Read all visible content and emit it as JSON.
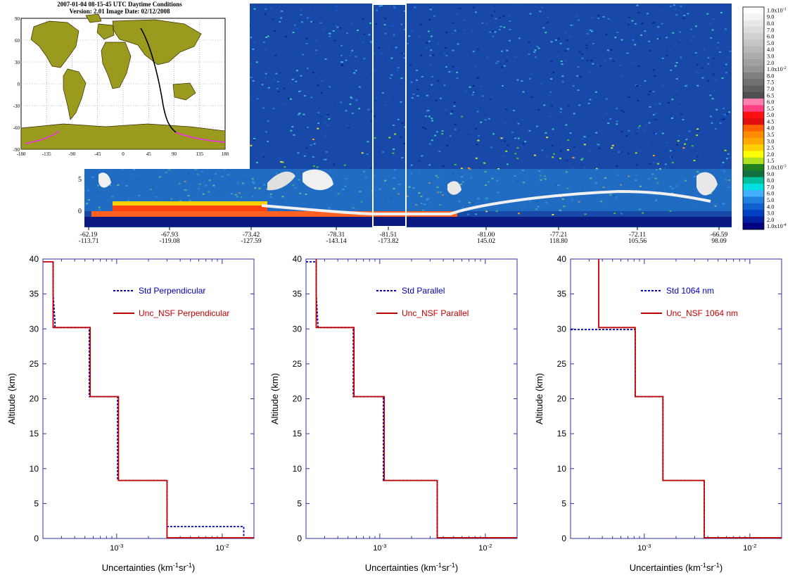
{
  "curtain": {
    "y_ticks": [
      "5",
      "0"
    ],
    "x_ticks": [
      {
        "lat": "-62.19",
        "lon": "-113.71"
      },
      {
        "lat": "-67.93",
        "lon": "-119.08"
      },
      {
        "lat": "-73.42",
        "lon": "-127.59"
      },
      {
        "lat": "-78.31",
        "lon": "-143.14"
      },
      {
        "lat": "-81.51",
        "lon": "-173.82"
      },
      {
        "lat": "-81.00",
        "lon": "145.02"
      },
      {
        "lat": "-77.21",
        "lon": "118.80"
      },
      {
        "lat": "-72.11",
        "lon": "105.56"
      },
      {
        "lat": "-66.59",
        "lon": "98.09"
      }
    ],
    "colorbar": {
      "labels": [
        "1.0x10-1",
        "9.0",
        "8.0",
        "7.0",
        "6.0",
        "5.0",
        "4.0",
        "3.0",
        "2.0",
        "1.0x10-2",
        "8.0",
        "7.5",
        "7.0",
        "6.5",
        "6.0",
        "5.5",
        "5.0",
        "4.5",
        "4.0",
        "3.5",
        "3.0",
        "2.5",
        "2.0",
        "1.5",
        "1.0x10-3",
        "9.0",
        "8.0",
        "7.0",
        "6.0",
        "5.0",
        "4.0",
        "3.0",
        "2.0",
        "1.0x10-4"
      ],
      "colors": [
        "#ffffff",
        "#f4f4f4",
        "#e8e8e8",
        "#dcdcdc",
        "#d0d0d0",
        "#c4c4c4",
        "#b8b8b8",
        "#acacac",
        "#a0a0a0",
        "#949494",
        "#808080",
        "#707070",
        "#606060",
        "#505050",
        "#ff80b0",
        "#ff4080",
        "#ff1010",
        "#e01010",
        "#ff6000",
        "#ff8c00",
        "#ffa800",
        "#ffd000",
        "#ffff00",
        "#b0e020",
        "#208020",
        "#107040",
        "#00c0a0",
        "#00e0e0",
        "#40b0ff",
        "#2080e0",
        "#1060d0",
        "#0040c0",
        "#0020a0",
        "#000080"
      ]
    }
  },
  "inset": {
    "title_line1": "2007-01-04  08-15-45 UTC Daytime Conditions",
    "title_line2": "Version: 2.01  Image Date: 02/12/2008",
    "lat_ticks": [
      "90",
      "60",
      "30",
      "0",
      "-30",
      "-60",
      "-90"
    ],
    "lon_ticks": [
      "-180",
      "-135",
      "-90",
      "-45",
      "0",
      "45",
      "90",
      "135",
      "180"
    ]
  },
  "chart_data": [
    {
      "type": "line",
      "xscale": "log",
      "xlim": [
        0.0002,
        0.02
      ],
      "ylim": [
        0,
        40
      ],
      "xlabel": "Uncertainties (km-1sr-1)",
      "ylabel": "Altitude (km)",
      "x_ticks": [
        "10-3",
        "10-2"
      ],
      "y_ticks": [
        "0",
        "5",
        "10",
        "15",
        "20",
        "25",
        "30",
        "35",
        "40"
      ],
      "series": [
        {
          "name": "Std Perpendicular",
          "color": "#0000b4",
          "style": "dashed",
          "x": [
            0.00025,
            0.00025,
            0.00026,
            0.00026,
            0.00055,
            0.00055,
            0.00102,
            0.00102,
            0.003,
            0.003,
            0.016,
            0.016
          ],
          "y": [
            39.6,
            35.0,
            31.0,
            30.2,
            30.2,
            20.3,
            20.3,
            8.3,
            8.3,
            1.7,
            1.7,
            0.1
          ]
        },
        {
          "name": "Unc_NSF Perpendicular",
          "color": "#c00000",
          "style": "solid",
          "x": [
            0.0002,
            0.00025,
            0.00025,
            0.00056,
            0.00056,
            0.00104,
            0.00104,
            0.003,
            0.003,
            0.02
          ],
          "y": [
            39.6,
            39.6,
            30.2,
            30.2,
            20.3,
            20.3,
            8.3,
            8.3,
            0.1,
            0.1
          ]
        }
      ]
    },
    {
      "type": "line",
      "xscale": "log",
      "xlim": [
        0.0002,
        0.02
      ],
      "ylim": [
        0,
        40
      ],
      "xlabel": "Uncertainties (km-1sr-1)",
      "ylabel": "Altitude (km)",
      "x_ticks": [
        "10-3",
        "10-2"
      ],
      "y_ticks": [
        "0",
        "5",
        "10",
        "15",
        "20",
        "25",
        "30",
        "35",
        "40"
      ],
      "series": [
        {
          "name": "Std Parallel",
          "color": "#0000b4",
          "style": "dashed",
          "x": [
            0.0002,
            0.00025,
            0.00025,
            0.00026,
            0.00056,
            0.00056,
            0.00108,
            0.00108,
            0.0035,
            0.0035,
            0.02
          ],
          "y": [
            39.6,
            39.6,
            35.0,
            30.2,
            30.2,
            20.3,
            20.3,
            8.3,
            8.3,
            0.1,
            0.1
          ]
        },
        {
          "name": "Unc_NSF Parallel",
          "color": "#c00000",
          "style": "solid",
          "x": [
            0.00025,
            0.00025,
            0.00057,
            0.00057,
            0.0011,
            0.0011,
            0.0035,
            0.0035,
            0.02
          ],
          "y": [
            40.0,
            30.2,
            30.2,
            20.3,
            20.3,
            8.3,
            8.3,
            0.1,
            0.1
          ]
        }
      ]
    },
    {
      "type": "line",
      "xscale": "log",
      "xlim": [
        0.0002,
        0.02
      ],
      "ylim": [
        0,
        40
      ],
      "xlabel": "Uncertainties (km-1sr-1)",
      "ylabel": "Altitude (km)",
      "x_ticks": [
        "10-3",
        "10-2"
      ],
      "y_ticks": [
        "0",
        "5",
        "10",
        "15",
        "20",
        "25",
        "30",
        "35",
        "40"
      ],
      "series": [
        {
          "name": "Std 1064 nm",
          "color": "#0000b4",
          "style": "dashed",
          "x": [
            0.0002,
            0.00082,
            0.00082,
            0.0015,
            0.0015,
            0.0037,
            0.0037,
            0.02
          ],
          "y": [
            29.9,
            29.9,
            20.3,
            20.3,
            8.3,
            8.3,
            0.1,
            0.1
          ]
        },
        {
          "name": "Unc_NSF 1064 nm",
          "color": "#c00000",
          "style": "solid",
          "x": [
            0.00037,
            0.00037,
            0.00082,
            0.00082,
            0.0015,
            0.0015,
            0.0037,
            0.0037,
            0.02
          ],
          "y": [
            40.0,
            30.2,
            30.2,
            20.3,
            20.3,
            8.3,
            8.3,
            0.1,
            0.1
          ]
        }
      ]
    }
  ]
}
